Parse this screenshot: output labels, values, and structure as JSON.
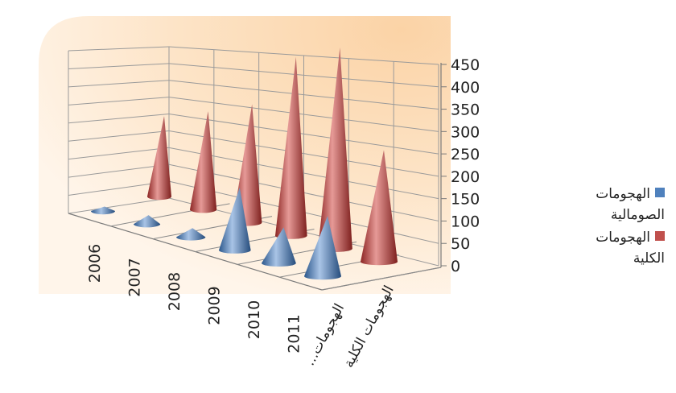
{
  "chart_data": {
    "type": "bar",
    "shape": "3d-cone",
    "categories": [
      "2006",
      "2007",
      "2008",
      "2009",
      "2010",
      "2011"
    ],
    "series": [
      {
        "name": "الهجومات الصومالية",
        "axis_label": "الهجومات...",
        "color": "#4f81bd",
        "values": [
          10,
          20,
          20,
          140,
          80,
          135
        ]
      },
      {
        "name": "الهجومات الكلية",
        "axis_label": "الهجومات الكلية",
        "color": "#c0504d",
        "values": [
          180,
          220,
          265,
          400,
          450,
          250
        ]
      }
    ],
    "yticks": [
      0,
      50,
      100,
      150,
      200,
      250,
      300,
      350,
      400,
      450
    ],
    "ylim": [
      0,
      450
    ],
    "grid": true,
    "legend_position": "right"
  }
}
